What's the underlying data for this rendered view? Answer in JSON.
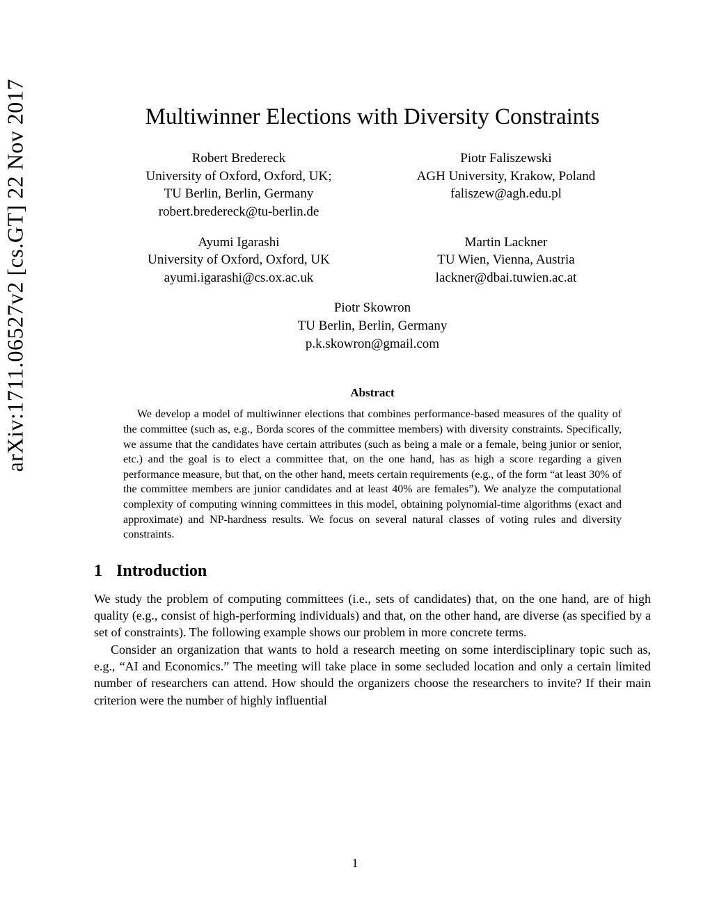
{
  "arxiv_label": "arXiv:1711.06527v2  [cs.GT]  22 Nov 2017",
  "title": "Multiwinner Elections with Diversity Constraints",
  "authors": [
    {
      "name": "Robert Bredereck",
      "affil1": "University of Oxford, Oxford, UK;",
      "affil2": "TU Berlin, Berlin, Germany",
      "email": "robert.bredereck@tu-berlin.de"
    },
    {
      "name": "Piotr Faliszewski",
      "affil1": "AGH University, Krakow, Poland",
      "affil2": "",
      "email": "faliszew@agh.edu.pl"
    },
    {
      "name": "Ayumi Igarashi",
      "affil1": "University of Oxford, Oxford, UK",
      "affil2": "",
      "email": "ayumi.igarashi@cs.ox.ac.uk"
    },
    {
      "name": "Martin Lackner",
      "affil1": "TU Wien, Vienna, Austria",
      "affil2": "",
      "email": "lackner@dbai.tuwien.ac.at"
    },
    {
      "name": "Piotr Skowron",
      "affil1": "TU Berlin, Berlin, Germany",
      "affil2": "",
      "email": "p.k.skowron@gmail.com"
    }
  ],
  "abstract_heading": "Abstract",
  "abstract_body": "We develop a model of multiwinner elections that combines performance-based measures of the quality of the committee (such as, e.g., Borda scores of the committee members) with diversity constraints. Specifically, we assume that the candidates have certain attributes (such as being a male or a female, being junior or senior, etc.) and the goal is to elect a committee that, on the one hand, has as high a score regarding a given performance measure, but that, on the other hand, meets certain requirements (e.g., of the form “at least 30% of the committee members are junior candidates and at least 40% are females”). We analyze the computational complexity of computing winning committees in this model, obtaining polynomial-time algorithms (exact and approximate) and NP-hardness results. We focus on several natural classes of voting rules and diversity constraints.",
  "section": {
    "number": "1",
    "title": "Introduction"
  },
  "para1": "We study the problem of computing committees (i.e., sets of candidates) that, on the one hand, are of high quality (e.g., consist of high-performing individuals) and that, on the other hand, are diverse (as specified by a set of constraints). The following example shows our problem in more concrete terms.",
  "para2": "Consider an organization that wants to hold a research meeting on some interdisciplinary topic such as, e.g., “AI and Economics.” The meeting will take place in some secluded location and only a certain limited number of researchers can attend. How should the organizers choose the researchers to invite? If their main criterion were the number of highly influential",
  "page_number": "1"
}
